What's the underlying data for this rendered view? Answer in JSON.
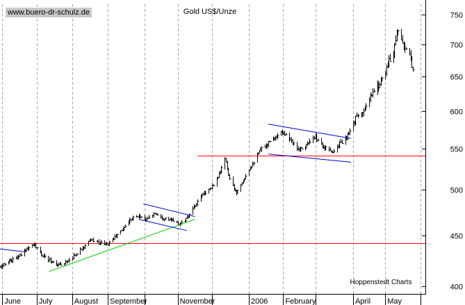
{
  "watermark": "www.buero-dr-schulz.de",
  "chart_data": {
    "type": "ohlc",
    "title": "Gold US$/Unze",
    "source": "Hoppenstedt Charts",
    "y_axis": {
      "side": "right",
      "scale": "log",
      "ticks": [
        400,
        450,
        500,
        550,
        600,
        650,
        700,
        750
      ],
      "range": [
        393,
        768
      ]
    },
    "x_axis": {
      "range": [
        "2005-05-30",
        "2006-06-05"
      ],
      "labels": [
        {
          "text": "June",
          "date": "2005-06-01"
        },
        {
          "text": "July",
          "date": "2005-07-01"
        },
        {
          "text": "August",
          "date": "2005-08-01"
        },
        {
          "text": "September",
          "date": "2005-09-01"
        },
        {
          "text": "November",
          "date": "2005-11-01"
        },
        {
          "text": "2006",
          "date": "2006-01-02"
        },
        {
          "text": "February",
          "date": "2006-02-01"
        },
        {
          "text": "April",
          "date": "2006-04-03"
        },
        {
          "text": "May",
          "date": "2006-05-01"
        }
      ],
      "tick_dates": [
        "2005-06-01",
        "2005-07-01",
        "2005-08-01",
        "2005-09-01",
        "2005-10-03",
        "2005-11-01",
        "2005-12-01",
        "2006-01-02",
        "2006-02-01",
        "2006-03-01",
        "2006-04-03",
        "2006-05-01",
        "2006-06-01"
      ]
    },
    "grid": {
      "vertical": true,
      "style": "dashed"
    },
    "price_path": [
      [
        "2005-05-30",
        418
      ],
      [
        "2005-06-08",
        425
      ],
      [
        "2005-06-15",
        428
      ],
      [
        "2005-06-22",
        437
      ],
      [
        "2005-06-28",
        441
      ],
      [
        "2005-07-05",
        430
      ],
      [
        "2005-07-12",
        425
      ],
      [
        "2005-07-20",
        420
      ],
      [
        "2005-07-27",
        424
      ],
      [
        "2005-08-03",
        430
      ],
      [
        "2005-08-10",
        438
      ],
      [
        "2005-08-17",
        445
      ],
      [
        "2005-08-24",
        443
      ],
      [
        "2005-08-31",
        441
      ],
      [
        "2005-09-07",
        448
      ],
      [
        "2005-09-14",
        457
      ],
      [
        "2005-09-21",
        468
      ],
      [
        "2005-09-28",
        471
      ],
      [
        "2005-10-05",
        467
      ],
      [
        "2005-10-12",
        474
      ],
      [
        "2005-10-19",
        469
      ],
      [
        "2005-10-26",
        466
      ],
      [
        "2005-11-02",
        462
      ],
      [
        "2005-11-09",
        468
      ],
      [
        "2005-11-16",
        482
      ],
      [
        "2005-11-23",
        496
      ],
      [
        "2005-11-30",
        502
      ],
      [
        "2005-12-07",
        518
      ],
      [
        "2005-12-12",
        538
      ],
      [
        "2005-12-16",
        512
      ],
      [
        "2005-12-22",
        497
      ],
      [
        "2005-12-29",
        515
      ],
      [
        "2006-01-05",
        532
      ],
      [
        "2006-01-12",
        548
      ],
      [
        "2006-01-19",
        558
      ],
      [
        "2006-01-26",
        568
      ],
      [
        "2006-02-01",
        572
      ],
      [
        "2006-02-08",
        558
      ],
      [
        "2006-02-15",
        550
      ],
      [
        "2006-02-22",
        556
      ],
      [
        "2006-03-01",
        564
      ],
      [
        "2006-03-08",
        552
      ],
      [
        "2006-03-15",
        545
      ],
      [
        "2006-03-22",
        556
      ],
      [
        "2006-03-29",
        566
      ],
      [
        "2006-04-05",
        590
      ],
      [
        "2006-04-12",
        599
      ],
      [
        "2006-04-19",
        622
      ],
      [
        "2006-04-26",
        640
      ],
      [
        "2006-05-03",
        668
      ],
      [
        "2006-05-08",
        690
      ],
      [
        "2006-05-11",
        722
      ],
      [
        "2006-05-15",
        712
      ],
      [
        "2006-05-18",
        690
      ],
      [
        "2006-05-22",
        682
      ],
      [
        "2006-05-25",
        662
      ]
    ],
    "annotations": {
      "horizontal_lines": [
        {
          "value": 442,
          "color": "#ff0000",
          "from": "2005-05-30",
          "to": "2006-06-05"
        },
        {
          "value": 541,
          "color": "#ff0000",
          "from": "2005-11-18",
          "to": "2006-06-05"
        }
      ],
      "trend_lines": [
        {
          "color": "#0000cc",
          "from": [
            "2005-05-30",
            436
          ],
          "to": [
            "2005-06-22",
            433
          ]
        },
        {
          "color": "#00cc00",
          "from": [
            "2005-07-12",
            414
          ],
          "to": [
            "2005-11-16",
            467
          ]
        },
        {
          "color": "#0000cc",
          "from": [
            "2005-10-02",
            484
          ],
          "to": [
            "2005-11-16",
            470
          ]
        },
        {
          "color": "#0000cc",
          "from": [
            "2005-09-28",
            467
          ],
          "to": [
            "2005-11-09",
            455
          ]
        },
        {
          "color": "#0000cc",
          "from": [
            "2006-01-19",
            582
          ],
          "to": [
            "2006-04-01",
            563
          ]
        },
        {
          "color": "#0000cc",
          "from": [
            "2006-01-19",
            543
          ],
          "to": [
            "2006-04-01",
            533
          ]
        }
      ]
    }
  }
}
